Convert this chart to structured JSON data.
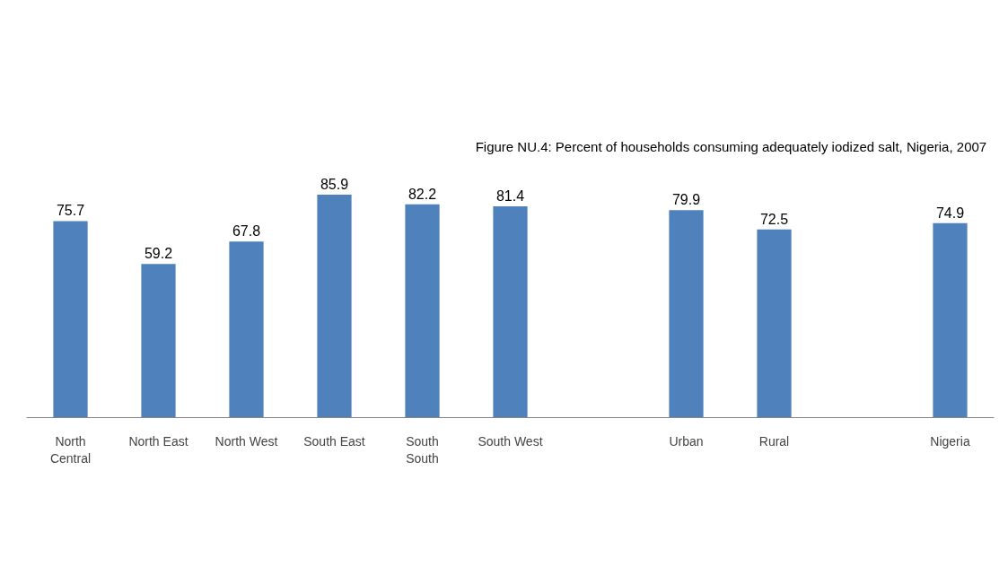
{
  "chart_data": {
    "type": "bar",
    "title": "Figure NU.4:  Percent  of households consuming adequately iodized salt, Nigeria, 2007",
    "categories": [
      "North Central",
      "North East",
      "North West",
      "South East",
      "South South",
      "South West",
      null,
      "Urban",
      "Rural",
      null,
      "Nigeria"
    ],
    "values": [
      75.7,
      59.2,
      67.8,
      85.9,
      82.2,
      81.4,
      null,
      79.9,
      72.5,
      null,
      74.9
    ],
    "color": "#4f81bd",
    "tick_labels": "x",
    "data_labels": true,
    "grid": false
  }
}
